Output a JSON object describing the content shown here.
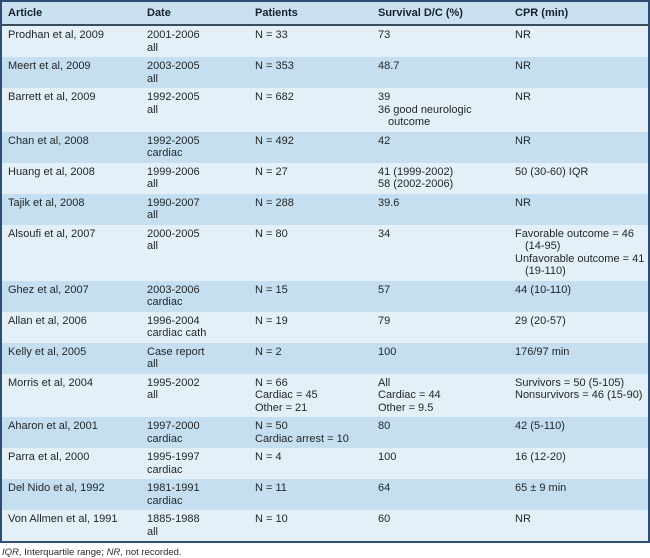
{
  "colors": {
    "border_navy": "#2d4d74",
    "header_rule": "#3a4d5c",
    "header_bg": "#c9e1f1",
    "row_light": "#e4f0f8",
    "row_dark": "#c5dff0",
    "text": "#1f2426"
  },
  "table": {
    "columns": [
      {
        "label": "Article"
      },
      {
        "label": "Date"
      },
      {
        "label": "Patients"
      },
      {
        "label": "Survival D/C (%)"
      },
      {
        "label": "CPR (min)"
      }
    ],
    "rows": [
      {
        "article": "Prodhan et al, 2009",
        "date": [
          "2001-2006",
          "all"
        ],
        "patients": [
          "N = 33"
        ],
        "survival": [
          "73"
        ],
        "cpr": [
          "NR"
        ]
      },
      {
        "article": "Meert et al, 2009",
        "date": [
          "2003-2005",
          "all"
        ],
        "patients": [
          "N = 353"
        ],
        "survival": [
          "48.7"
        ],
        "cpr": [
          "NR"
        ]
      },
      {
        "article": "Barrett et al, 2009",
        "date": [
          "1992-2005",
          "all"
        ],
        "patients": [
          "N = 682"
        ],
        "survival": [
          "39",
          "36 good neurologic",
          {
            "text": "outcome",
            "indent": true
          }
        ],
        "cpr": [
          "NR"
        ]
      },
      {
        "article": "Chan et al, 2008",
        "date": [
          "1992-2005",
          "cardiac"
        ],
        "patients": [
          "N = 492"
        ],
        "survival": [
          "42"
        ],
        "cpr": [
          "NR"
        ]
      },
      {
        "article": "Huang et al, 2008",
        "date": [
          "1999-2006",
          "all"
        ],
        "patients": [
          "N = 27"
        ],
        "survival": [
          "41 (1999-2002)",
          "58 (2002-2006)"
        ],
        "cpr": [
          "50 (30-60) IQR"
        ]
      },
      {
        "article": "Tajik et al, 2008",
        "date": [
          "1990-2007",
          "all"
        ],
        "patients": [
          "N = 288"
        ],
        "survival": [
          "39.6"
        ],
        "cpr": [
          "NR"
        ]
      },
      {
        "article": "Alsoufi et al, 2007",
        "date": [
          "2000-2005",
          "all"
        ],
        "patients": [
          "N = 80"
        ],
        "survival": [
          "34"
        ],
        "cpr": [
          "Favorable outcome = 46",
          {
            "text": "(14-95)",
            "indent": true
          },
          "Unfavorable outcome = 41",
          {
            "text": "(19-110)",
            "indent": true
          }
        ]
      },
      {
        "article": "Ghez et al, 2007",
        "date": [
          "2003-2006",
          "cardiac"
        ],
        "patients": [
          "N = 15"
        ],
        "survival": [
          "57"
        ],
        "cpr": [
          "44 (10-110)"
        ]
      },
      {
        "article": "Allan et al, 2006",
        "date": [
          "1996-2004",
          "cardiac cath"
        ],
        "patients": [
          "N = 19"
        ],
        "survival": [
          "79"
        ],
        "cpr": [
          "29 (20-57)"
        ]
      },
      {
        "article": "Kelly et al, 2005",
        "date": [
          "Case report",
          "all"
        ],
        "patients": [
          "N = 2"
        ],
        "survival": [
          "100"
        ],
        "cpr": [
          "176/97 min"
        ]
      },
      {
        "article": "Morris et al, 2004",
        "date": [
          "1995-2002",
          "all"
        ],
        "patients": [
          "N = 66",
          "Cardiac = 45",
          "Other = 21"
        ],
        "survival": [
          "All",
          "Cardiac = 44",
          "Other = 9.5"
        ],
        "cpr": [
          "Survivors = 50 (5-105)",
          "Nonsurvivors = 46 (15-90)"
        ]
      },
      {
        "article": "Aharon et al, 2001",
        "date": [
          "1997-2000",
          "cardiac"
        ],
        "patients": [
          "N = 50",
          "Cardiac arrest = 10"
        ],
        "survival": [
          "80"
        ],
        "cpr": [
          "42 (5-110)"
        ]
      },
      {
        "article": "Parra et al, 2000",
        "date": [
          "1995-1997",
          "cardiac"
        ],
        "patients": [
          "N = 4"
        ],
        "survival": [
          "100"
        ],
        "cpr": [
          "16 (12-20)"
        ]
      },
      {
        "article": "Del Nido et al, 1992",
        "date": [
          "1981-1991",
          "cardiac"
        ],
        "patients": [
          "N = 11"
        ],
        "survival": [
          "64"
        ],
        "cpr": [
          "65 ± 9 min"
        ]
      },
      {
        "article": "Von Allmen et al, 1991",
        "date": [
          "1885-1988",
          "all"
        ],
        "patients": [
          "N = 10"
        ],
        "survival": [
          "60"
        ],
        "cpr": [
          "NR"
        ]
      }
    ]
  },
  "footnote": {
    "parts": [
      {
        "text": "IQR",
        "italic": true
      },
      {
        "text": ", Interquartile range; ",
        "italic": false
      },
      {
        "text": "NR",
        "italic": true
      },
      {
        "text": ", not recorded.",
        "italic": false
      }
    ]
  }
}
